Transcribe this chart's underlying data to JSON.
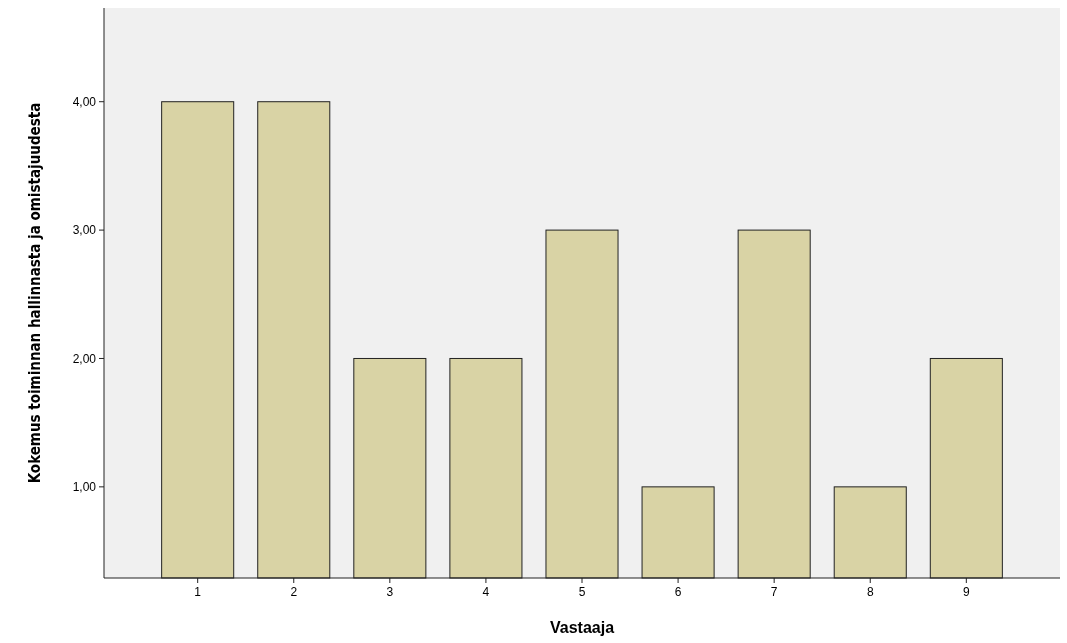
{
  "chart_data": {
    "type": "bar",
    "xlabel": "Vastaaja",
    "ylabel": "Kokemus toiminnan hallinnasta ja omistajuudesta",
    "categories": [
      "1",
      "2",
      "3",
      "4",
      "5",
      "6",
      "7",
      "8",
      "9"
    ],
    "values": [
      4,
      4,
      2,
      2,
      3,
      1,
      3,
      1,
      2
    ],
    "color": "#d9d3a5",
    "ylim": [
      0.29,
      4.73
    ],
    "yticks": [
      {
        "value": 1,
        "label": "1,00"
      },
      {
        "value": 2,
        "label": "2,00"
      },
      {
        "value": 3,
        "label": "3,00"
      },
      {
        "value": 4,
        "label": "4,00"
      }
    ],
    "grid": false
  }
}
